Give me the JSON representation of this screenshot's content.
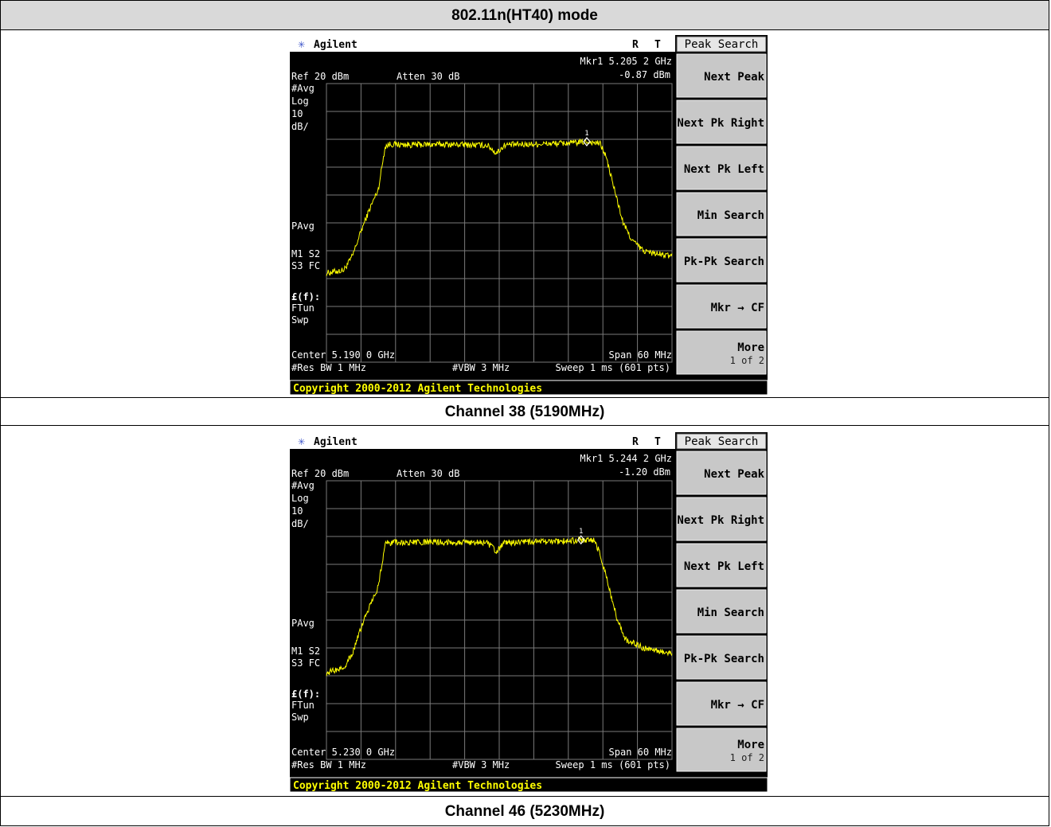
{
  "table": {
    "header": "802.11n(HT40) mode",
    "captions": [
      "Channel 38 (5190MHz)",
      "Channel 46 (5230MHz)"
    ]
  },
  "screens": [
    {
      "brand": "Agilent",
      "status_r": "R",
      "status_t": "T",
      "marker_label": "Mkr1  5.205 2 GHz",
      "marker_value": "-0.87 dBm",
      "ref": "Ref 20 dBm",
      "atten": "Atten 30 dB",
      "left_labels": [
        "#Avg",
        "Log",
        "10",
        "dB/"
      ],
      "pavg": "PAvg",
      "m1s2": "M1  S2",
      "s3fc": "S3  FC",
      "ef": "£(f):",
      "ftun": "FTun",
      "swp": "Swp",
      "center": "Center 5.190 0 GHz",
      "span": "Span 60 MHz",
      "resbw": "#Res BW 1 MHz",
      "vbw": "#VBW 3 MHz",
      "sweep": "Sweep 1 ms (601 pts)",
      "copyright": "Copyright 2000-2012 Agilent Technologies",
      "marker_number": "1",
      "softkey_title": "Peak Search",
      "softkeys": [
        "Next Peak",
        "Next Pk Right",
        "Next Pk Left",
        "Min Search",
        "Pk-Pk Search",
        "Mkr → CF",
        "More"
      ],
      "more_sub": "1 of 2"
    },
    {
      "brand": "Agilent",
      "status_r": "R",
      "status_t": "T",
      "marker_label": "Mkr1  5.244 2 GHz",
      "marker_value": "-1.20 dBm",
      "ref": "Ref 20 dBm",
      "atten": "Atten 30 dB",
      "left_labels": [
        "#Avg",
        "Log",
        "10",
        "dB/"
      ],
      "pavg": "PAvg",
      "m1s2": "M1  S2",
      "s3fc": "S3  FC",
      "ef": "£(f):",
      "ftun": "FTun",
      "swp": "Swp",
      "center": "Center 5.230 0 GHz",
      "span": "Span 60 MHz",
      "resbw": "#Res BW 1 MHz",
      "vbw": "#VBW 3 MHz",
      "sweep": "Sweep 1 ms (601 pts)",
      "copyright": "Copyright 2000-2012 Agilent Technologies",
      "marker_number": "1",
      "softkey_title": "Peak Search",
      "softkeys": [
        "Next Peak",
        "Next Pk Right",
        "Next Pk Left",
        "Min Search",
        "Pk-Pk Search",
        "Mkr → CF",
        "More"
      ],
      "more_sub": "1 of 2"
    }
  ],
  "colors": {
    "trace": "#ffff00",
    "grid": "#7a7a7a",
    "screen_bg": "#000000",
    "text": "#ffffff",
    "softkey_bg": "#c8c8c8"
  },
  "chart_data": [
    {
      "type": "line",
      "x_center_ghz": 5.19,
      "span_mhz": 60,
      "ref_level_dbm": 20,
      "scale_db_per_div": 10,
      "xlim_ghz": [
        5.16,
        5.22
      ],
      "ylim_dbm": [
        -80,
        20
      ],
      "grid": true,
      "series": [
        {
          "x": [
            5.16,
            5.163,
            5.1645,
            5.166,
            5.1675,
            5.169,
            5.1702,
            5.171,
            5.175,
            5.18,
            5.185,
            5.188,
            5.1895,
            5.191,
            5.195,
            5.2,
            5.203,
            5.2052,
            5.2075,
            5.2085,
            5.2095,
            5.2105,
            5.2115,
            5.213,
            5.215,
            5.217,
            5.22
          ],
          "y": [
            -48,
            -47,
            -42,
            -33,
            -25,
            -18,
            -2.5,
            -1.8,
            -2,
            -1.8,
            -2,
            -2.2,
            -5,
            -2,
            -1.8,
            -1.5,
            -1.3,
            -0.87,
            -1.5,
            -6,
            -14,
            -22,
            -30,
            -36,
            -40,
            -41,
            -42
          ]
        }
      ],
      "marker": {
        "x": 5.2052,
        "y": -0.87
      }
    },
    {
      "type": "line",
      "x_center_ghz": 5.23,
      "span_mhz": 60,
      "ref_level_dbm": 20,
      "scale_db_per_div": 10,
      "xlim_ghz": [
        5.2,
        5.26
      ],
      "ylim_dbm": [
        -80,
        20
      ],
      "grid": true,
      "series": [
        {
          "x": [
            5.2,
            5.203,
            5.2045,
            5.206,
            5.2075,
            5.209,
            5.2102,
            5.211,
            5.215,
            5.22,
            5.225,
            5.228,
            5.2295,
            5.231,
            5.235,
            5.24,
            5.243,
            5.2442,
            5.2465,
            5.2475,
            5.2485,
            5.2495,
            5.2505,
            5.252,
            5.255,
            5.257,
            5.26
          ],
          "y": [
            -49,
            -47,
            -42,
            -33,
            -25,
            -18,
            -2.5,
            -2.2,
            -2.2,
            -2,
            -2.1,
            -2.3,
            -5.5,
            -2.2,
            -2,
            -1.8,
            -1.5,
            -1.2,
            -1.5,
            -6,
            -14,
            -22,
            -30,
            -37,
            -40,
            -41,
            -42
          ]
        }
      ],
      "marker": {
        "x": 5.2442,
        "y": -1.2
      }
    }
  ]
}
